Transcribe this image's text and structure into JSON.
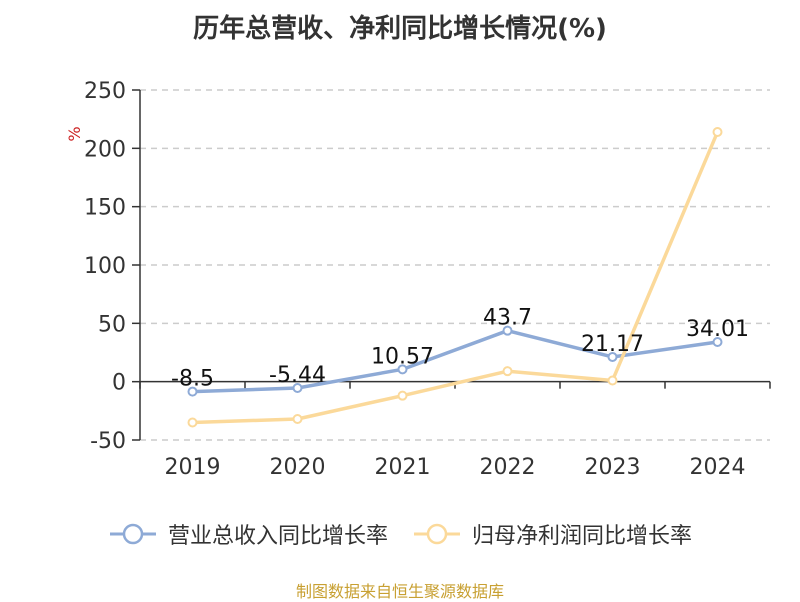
{
  "chart_data": {
    "type": "line",
    "title": "历年总营收、净利同比增长情况(%)",
    "ylabel": "%",
    "categories": [
      "2019",
      "2020",
      "2021",
      "2022",
      "2023",
      "2024"
    ],
    "ylim": [
      -50,
      250
    ],
    "yticks": [
      "250",
      "200",
      "150",
      "100",
      "50",
      "0",
      "-50"
    ],
    "grid": true,
    "legend_position": "bottom",
    "series": [
      {
        "name": "营业总收入同比增长率",
        "color": "#8eaad6",
        "values": [
          -8.5,
          -5.44,
          10.57,
          43.7,
          21.17,
          34.01
        ],
        "labels": [
          "-8.5",
          "-5.44",
          "10.57",
          "43.7",
          "21.17",
          "34.01"
        ]
      },
      {
        "name": "归母净利润同比增长率",
        "color": "#fbd99a",
        "values": [
          -35,
          -32,
          -12,
          9,
          1,
          214
        ],
        "labels": []
      }
    ]
  },
  "source": "制图数据来自恒生聚源数据库"
}
